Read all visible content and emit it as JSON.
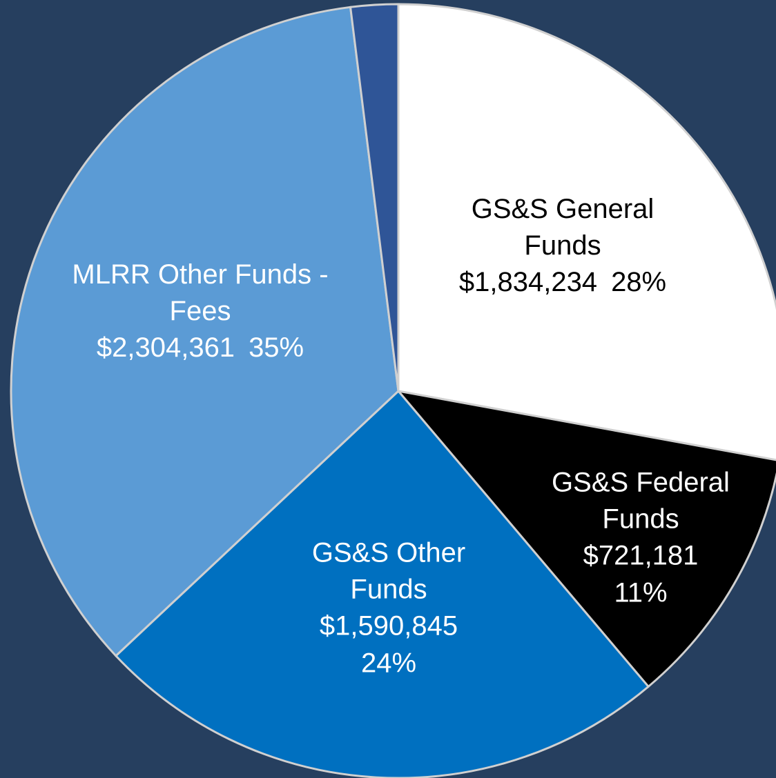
{
  "chart_data": {
    "type": "pie",
    "categories": [
      "GS&S General Funds",
      "GS&S Federal Funds",
      "GS&S Other Funds",
      "MLRR Other Funds - Fees",
      null
    ],
    "values": [
      1834234,
      721181,
      1590845,
      2304361,
      130000
    ],
    "value_labels": [
      "$1,834,234",
      "$721,181",
      "$1,590,845",
      "$2,304,361",
      null
    ],
    "percent_labels": [
      "28%",
      "11%",
      "24%",
      "35%",
      null
    ],
    "colors": [
      "#ffffff",
      "#000000",
      "#0070c0",
      "#5b9bd5",
      "#2f5597"
    ],
    "start_angle": 0,
    "direction": "clockwise"
  }
}
